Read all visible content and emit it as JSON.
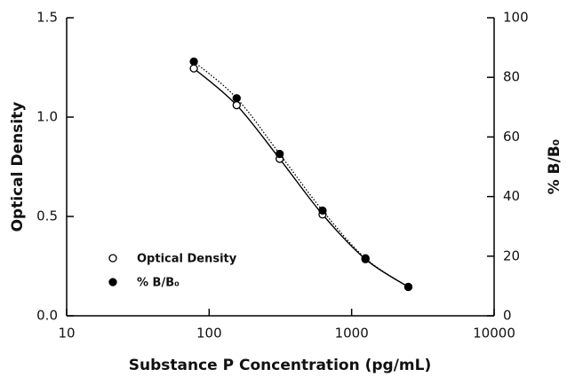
{
  "chart_data": {
    "type": "scatter",
    "x_label": "Substance P Concentration (pg/mL)",
    "y_label": "Optical Density",
    "y2_label": "% B/B₀",
    "x": [
      78.1,
      156,
      312.5,
      625,
      1250,
      2500
    ],
    "series": [
      {
        "name": "Optical Density",
        "color": "#000000",
        "marker": "open",
        "line": "solid",
        "values": [
          1.245,
          1.06,
          0.79,
          0.51,
          0.285,
          0.145
        ]
      },
      {
        "name": "% B/B₀",
        "color": "#000000",
        "marker": "filled",
        "line": "dotted",
        "axis": "y2",
        "values": [
          85.3,
          73,
          54.3,
          35.3,
          19.3,
          9.7
        ]
      }
    ],
    "x_log": true,
    "xlim": [
      10,
      10000
    ],
    "xticks": [
      10,
      100,
      1000,
      10000
    ],
    "ylim": [
      0,
      1.5
    ],
    "yticks": [
      {
        "value": 0,
        "label": "0.0"
      },
      0.5,
      {
        "value": 1,
        "label": "1.0"
      },
      1.5
    ],
    "y2lim": [
      0,
      100
    ],
    "y2ticks": [
      0,
      20,
      40,
      60,
      80,
      100
    ],
    "legend": "lower left"
  }
}
